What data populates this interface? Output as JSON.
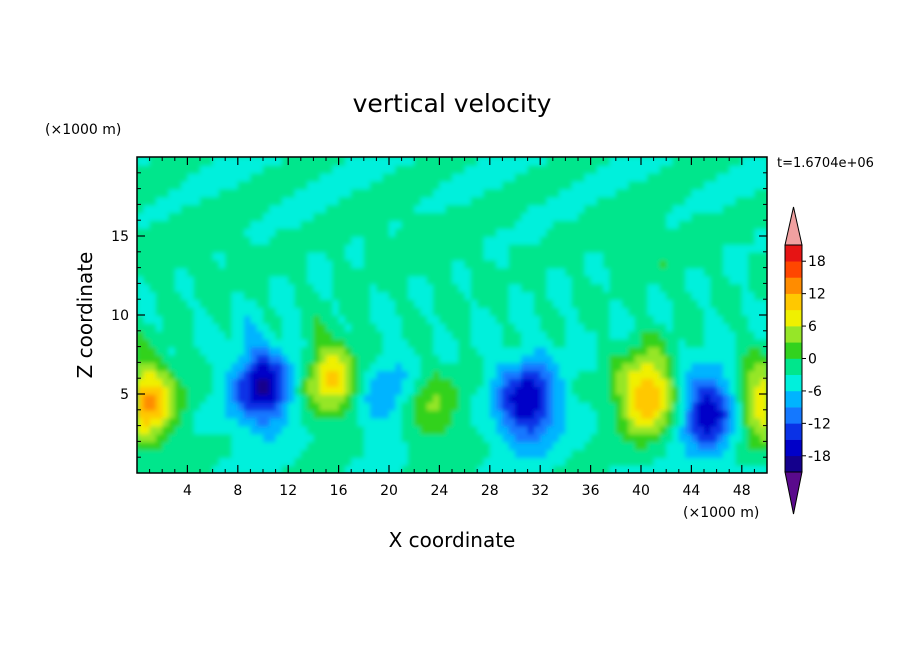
{
  "chart_data": {
    "type": "heatmap",
    "title": "vertical velocity",
    "xlabel": "X coordinate",
    "ylabel": "Z coordinate",
    "x_unit": "(×1000 m)",
    "y_unit": "(×1000 m)",
    "annotation": "t=1.6704e+06",
    "xlim": [
      0,
      50
    ],
    "ylim": [
      0,
      20
    ],
    "x_ticks": [
      4,
      8,
      12,
      16,
      20,
      24,
      28,
      32,
      36,
      40,
      44,
      48
    ],
    "y_ticks": [
      5,
      10,
      15
    ],
    "colorbar": {
      "levels": [
        -21,
        -18,
        -15,
        -12,
        -9,
        -6,
        -3,
        0,
        3,
        6,
        9,
        12,
        15,
        18,
        21
      ],
      "tick_labels": [
        -18,
        -12,
        -6,
        0,
        6,
        12,
        18
      ],
      "colors": [
        "#5a0a8c",
        "#14008c",
        "#0000c8",
        "#0a32e6",
        "#1478ff",
        "#00b4ff",
        "#00f0dc",
        "#00e68c",
        "#32d21e",
        "#96e628",
        "#f0f000",
        "#ffc800",
        "#ff8c00",
        "#ff4600",
        "#e61414",
        "#f0a0a0"
      ],
      "extend": "both"
    },
    "features": [
      {
        "kind": "updraft",
        "x": 0.8,
        "z": 4.5,
        "peak": 15,
        "note": "left edge"
      },
      {
        "kind": "downdraft",
        "x": 10,
        "z": 5.5,
        "peak": -15,
        "note": "centered near x=10"
      },
      {
        "kind": "updraft",
        "x": 15.5,
        "z": 6.0,
        "peak": 12
      },
      {
        "kind": "downdraft",
        "x": 19.5,
        "z": 5.0,
        "peak": -6
      },
      {
        "kind": "updraft",
        "x": 23.5,
        "z": 4.0,
        "peak": 6
      },
      {
        "kind": "downdraft",
        "x": 31,
        "z": 4.5,
        "peak": -15
      },
      {
        "kind": "updraft",
        "x": 40.5,
        "z": 5.0,
        "peak": 15
      },
      {
        "kind": "downdraft",
        "x": 45.5,
        "z": 4.0,
        "peak": -15
      },
      {
        "kind": "updraft",
        "x": 49.5,
        "z": 4.5,
        "peak": 12,
        "note": "right edge"
      }
    ]
  }
}
